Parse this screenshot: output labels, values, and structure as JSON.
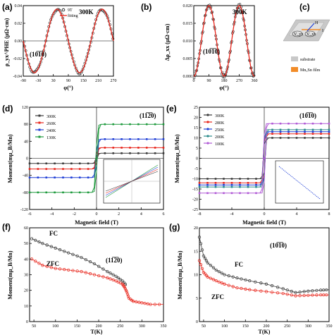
{
  "panels": {
    "a": {
      "letter": "(a)",
      "temp": "300K",
      "dir": "(10̅1̅0)",
      "ylabel": "ρ_yx^PHE (μΩ·cm)",
      "xlabel": "φ(°)",
      "leg_data": "9T",
      "leg_fit": "fitting"
    },
    "b": {
      "letter": "(b)",
      "temp": "300K",
      "dir": "(10̅1̅0)",
      "ylabel": "Δρ_xx (μΩ·cm)",
      "xlabel": "φ(°)"
    },
    "c": {
      "letter": "(c)",
      "substrate": "substrate",
      "film": "Mn₃Sn film",
      "h": "H",
      "i": "I",
      "vyx": "V_yx",
      "vxx": "V_xx"
    },
    "d": {
      "letter": "(d)",
      "dir": "(11̅2̅0)",
      "ylabel": "Moment(mμ_B/Mn)",
      "xlabel": "Magnetic field (T)"
    },
    "e": {
      "letter": "(e)",
      "dir": "(10̅1̅0)",
      "ylabel": "Moment(mμ_B/Mn)",
      "xlabel": "Magnetic field (T)"
    },
    "f": {
      "letter": "(f)",
      "dir": "(11̅2̅0)",
      "ylabel": "Moment(mμ_B/Mn)",
      "xlabel": "T(K)",
      "fc": "FC",
      "zfc": "ZFC"
    },
    "g": {
      "letter": "(g)",
      "dir": "(10̅1̅0)",
      "ylabel": "Moment(mμ_B/Mn)",
      "xlabel": "T(K)",
      "fc": "FC",
      "zfc": "ZFC"
    }
  },
  "colors": {
    "black": "#3a3a3a",
    "red": "#e8261c",
    "blue": "#1f3fd6",
    "green": "#1f9a3e",
    "purple": "#b15bd6",
    "teal": "#2a8b8b",
    "orange": "#f28c28",
    "gray": "#c8c8c8"
  },
  "chart_data": [
    {
      "id": "a",
      "type": "scatter",
      "xlim": [
        -90,
        270
      ],
      "ylim": [
        -0.04,
        0.04
      ],
      "xticks": [
        -90,
        -30,
        30,
        90,
        150,
        210,
        270
      ],
      "yticks": [
        -0.04,
        -0.02,
        0.0,
        0.02,
        0.04
      ],
      "model": "A*sin(2*phi)",
      "amplitude": 0.036,
      "series": [
        {
          "name": "9T",
          "style": "markers"
        },
        {
          "name": "fitting",
          "style": "line"
        }
      ]
    },
    {
      "id": "b",
      "type": "scatter",
      "xlim": [
        0,
        360
      ],
      "ylim": [
        0,
        0.02
      ],
      "xticks": [
        0,
        90,
        180,
        270,
        360
      ],
      "yticks": [
        0.0,
        0.005,
        0.01,
        0.015,
        0.02
      ],
      "model": "A*sin^2(phi)",
      "amplitude": 0.02,
      "series": [
        {
          "name": "9T",
          "style": "markers"
        },
        {
          "name": "fitting",
          "style": "line"
        }
      ]
    },
    {
      "id": "d",
      "type": "line",
      "xlim": [
        -6,
        6
      ],
      "ylim": [
        -120,
        120
      ],
      "xticks": [
        -6,
        -4,
        -2,
        0,
        2,
        4,
        6
      ],
      "yticks": [
        -120,
        -80,
        -40,
        0,
        40,
        80,
        120
      ],
      "series": [
        {
          "name": "300K",
          "color": "#3a3a3a",
          "sat": 12
        },
        {
          "name": "260K",
          "color": "#e8261c",
          "sat": 25
        },
        {
          "name": "240K",
          "color": "#1f3fd6",
          "sat": 45
        },
        {
          "name": "130K",
          "color": "#1f9a3e",
          "sat": 80
        }
      ]
    },
    {
      "id": "e",
      "type": "line",
      "xlim": [
        -8,
        8
      ],
      "ylim": [
        -25,
        25
      ],
      "xticks": [
        -8,
        -4,
        0,
        4,
        8
      ],
      "yticks": [
        -25,
        -20,
        -15,
        -10,
        -5,
        0,
        5,
        10,
        15,
        20,
        25
      ],
      "series": [
        {
          "name": "300K",
          "color": "#3a3a3a",
          "sat": 10
        },
        {
          "name": "280K",
          "color": "#e8261c",
          "sat": 12
        },
        {
          "name": "250K",
          "color": "#1f3fd6",
          "sat": 13
        },
        {
          "name": "200K",
          "color": "#2a8b8b",
          "sat": 14
        },
        {
          "name": "100K",
          "color": "#b15bd6",
          "sat": 17
        }
      ]
    },
    {
      "id": "f",
      "type": "scatter",
      "xlim": [
        40,
        350
      ],
      "ylim": [
        0,
        60
      ],
      "xticks": [
        50,
        100,
        150,
        200,
        250,
        300,
        350
      ],
      "yticks": [
        0,
        10,
        20,
        30,
        40,
        50,
        60
      ],
      "series": [
        {
          "name": "FC",
          "color": "#3a3a3a",
          "x": [
            45,
            70,
            100,
            130,
            160,
            190,
            220,
            240,
            255,
            265
          ],
          "y": [
            53,
            50,
            47,
            44,
            41,
            37,
            32,
            29,
            26,
            23
          ]
        },
        {
          "name": "ZFC",
          "color": "#e8261c",
          "x": [
            45,
            70,
            100,
            130,
            160,
            190,
            220,
            240,
            255,
            260,
            265,
            270,
            280,
            300,
            320,
            350
          ],
          "y": [
            40,
            36,
            34,
            33,
            32,
            30,
            28,
            26,
            24,
            22,
            19,
            15,
            13,
            12,
            11,
            11
          ]
        }
      ]
    },
    {
      "id": "g",
      "type": "scatter",
      "xlim": [
        40,
        350
      ],
      "ylim": [
        0,
        20
      ],
      "xticks": [
        50,
        100,
        150,
        200,
        250,
        300,
        350
      ],
      "yticks": [
        0,
        5,
        10,
        15,
        20
      ],
      "series": [
        {
          "name": "FC",
          "color": "#3a3a3a",
          "x": [
            40,
            50,
            60,
            80,
            100,
            130,
            160,
            200,
            240,
            270,
            300,
            330,
            350
          ],
          "y": [
            18,
            14,
            12.5,
            11,
            10,
            9.3,
            8.7,
            8,
            7,
            6.2,
            6.5,
            6.7,
            6.8
          ]
        },
        {
          "name": "ZFC",
          "color": "#e8261c",
          "x": [
            40,
            50,
            60,
            80,
            100,
            130,
            160,
            200,
            240,
            270,
            300,
            330,
            350
          ],
          "y": [
            13,
            10.5,
            9.5,
            8.7,
            8,
            7.2,
            6.8,
            6.4,
            6,
            5.5,
            5.6,
            5.7,
            5.7
          ]
        }
      ]
    }
  ]
}
